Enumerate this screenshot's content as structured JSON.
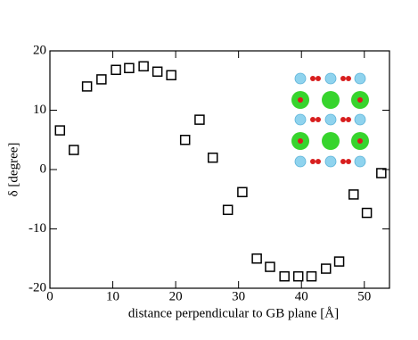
{
  "chart_data": {
    "type": "scatter",
    "xlabel": "distance perpendicular to GB plane [Å]",
    "ylabel": "δ [degree]",
    "x": [
      1.6,
      3.8,
      5.9,
      8.2,
      10.5,
      12.6,
      14.9,
      17.1,
      19.3,
      21.5,
      23.8,
      25.9,
      28.3,
      30.6,
      32.9,
      35.0,
      37.3,
      39.5,
      41.6,
      43.9,
      46.0,
      48.3,
      50.4,
      52.7
    ],
    "values": [
      6.6,
      3.3,
      14.0,
      15.2,
      16.8,
      17.1,
      17.4,
      16.5,
      15.9,
      5.0,
      8.4,
      2.0,
      -6.8,
      -3.8,
      -15.0,
      -16.4,
      -18.0,
      -18.0,
      -18.0,
      -16.7,
      -15.5,
      -4.2,
      -7.3,
      -0.6
    ],
    "color": "#000000",
    "xlim": [
      0,
      54
    ],
    "xticks": [
      0,
      10,
      20,
      30,
      40,
      50
    ],
    "ylim": [
      -20,
      20
    ],
    "yticks": [
      -20,
      -10,
      0,
      10,
      20
    ]
  }
}
